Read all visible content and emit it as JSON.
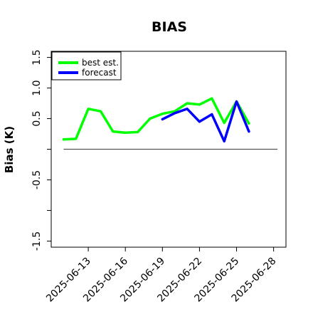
{
  "chart_data": {
    "type": "line",
    "title": "BIAS",
    "xlabel": "",
    "ylabel": "Bias (K)",
    "ylim": [
      -1.6,
      1.6
    ],
    "yticks": [
      -1.5,
      -1.0,
      -0.5,
      0.0,
      0.5,
      1.0,
      1.5
    ],
    "ytick_labels": [
      "-1.5",
      "",
      "-0.5",
      "",
      "0.5",
      "1.0",
      "1.5"
    ],
    "xlim": [
      "2025-06-10",
      "2025-06-29"
    ],
    "xticks": [
      "2025-06-13",
      "2025-06-16",
      "2025-06-19",
      "2025-06-22",
      "2025-06-25",
      "2025-06-28"
    ],
    "highlighted_xtick": "2025-06-19",
    "highlight_color": "#228B22",
    "grid": false,
    "legend_position": "top-left",
    "zero_line": 0.0,
    "series": [
      {
        "name": "best est.",
        "color": "#00ff00",
        "x": [
          "2025-06-11",
          "2025-06-12",
          "2025-06-13",
          "2025-06-14",
          "2025-06-15",
          "2025-06-16",
          "2025-06-17",
          "2025-06-18",
          "2025-06-19",
          "2025-06-20",
          "2025-06-21",
          "2025-06-22",
          "2025-06-23",
          "2025-06-24",
          "2025-06-25",
          "2025-06-26"
        ],
        "values": [
          0.16,
          0.17,
          0.66,
          0.62,
          0.29,
          0.27,
          0.28,
          0.5,
          0.58,
          0.62,
          0.75,
          0.73,
          0.83,
          0.43,
          0.78,
          0.42
        ]
      },
      {
        "name": "forecast",
        "color": "#0000ff",
        "x": [
          "2025-06-19",
          "2025-06-20",
          "2025-06-21",
          "2025-06-22",
          "2025-06-23",
          "2025-06-24",
          "2025-06-25",
          "2025-06-26"
        ],
        "values": [
          0.49,
          0.59,
          0.66,
          0.45,
          0.57,
          0.13,
          0.78,
          0.29
        ]
      }
    ]
  }
}
